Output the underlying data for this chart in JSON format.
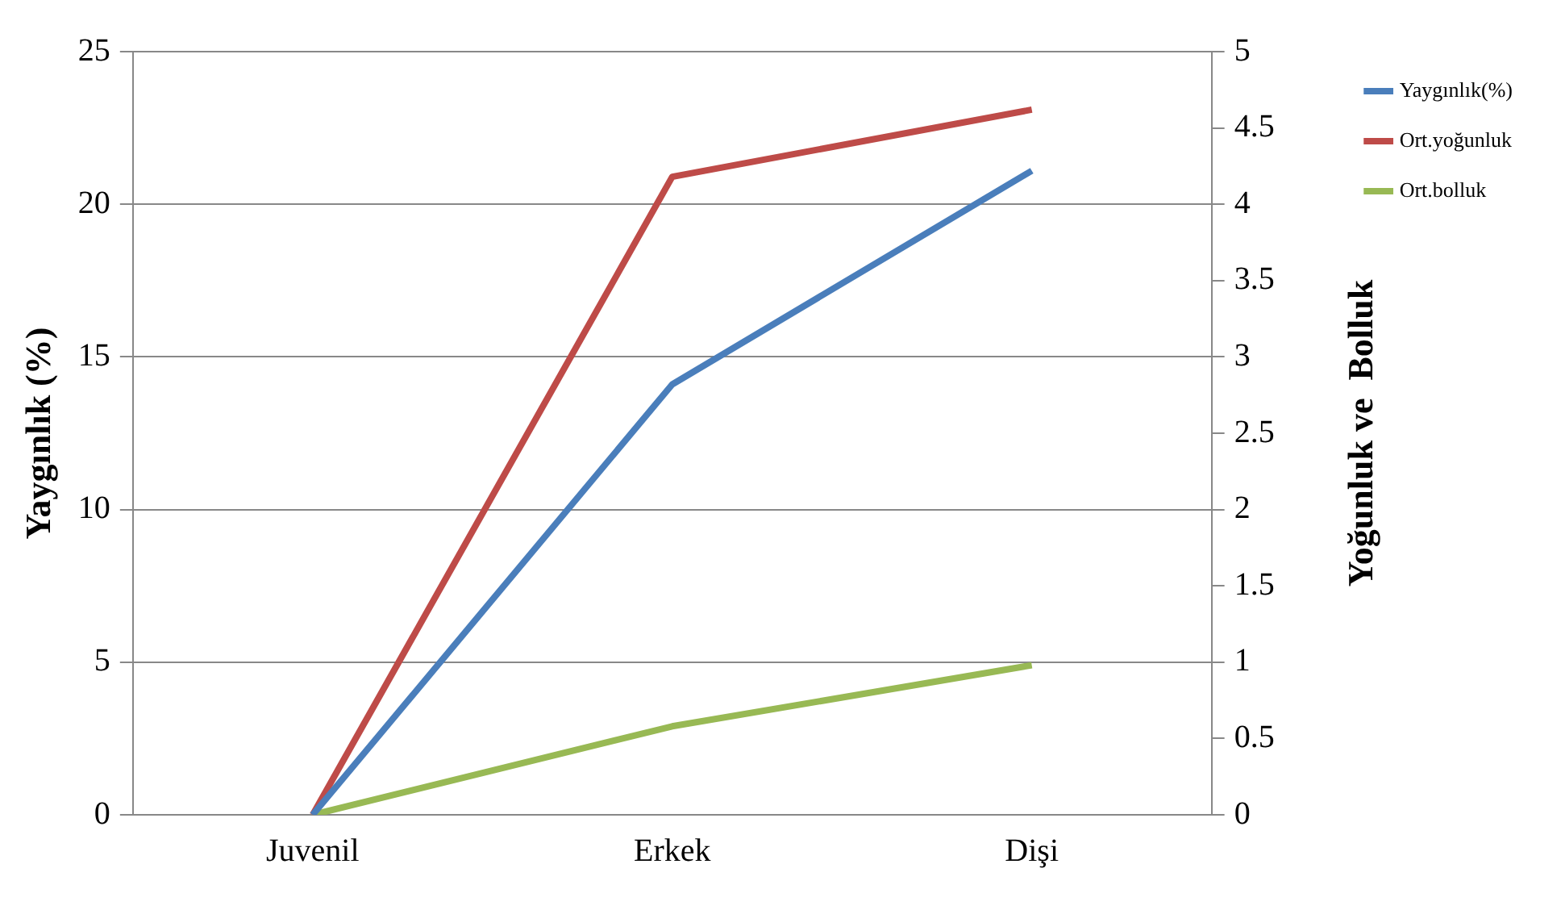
{
  "chart_data": {
    "type": "line",
    "xlabel": null,
    "ylabel": "Yaygınlık (%)",
    "y2label": "Yoğunluk ve  Bolluk",
    "categories": [
      "Juvenil",
      "Erkek",
      "Dişi"
    ],
    "series": [
      {
        "name": "Yaygınlık(%)",
        "color": "#4a7ebb",
        "values": [
          0,
          14.1,
          21.1
        ]
      },
      {
        "name": "Ort.yoğunluk",
        "color": "#be4b48",
        "values": [
          0,
          4.18,
          4.62
        ],
        "axis": "y2"
      },
      {
        "name": "Ort.bolluk",
        "color": "#98b954",
        "values": [
          0,
          0.58,
          0.98
        ],
        "axis": "y2"
      }
    ],
    "ylim": [
      0,
      25
    ],
    "yticks": [
      0,
      5,
      10,
      15,
      20,
      25
    ],
    "y2lim": [
      0,
      5
    ],
    "y2ticks": [
      0,
      0.5,
      1,
      1.5,
      2,
      2.5,
      3,
      3.5,
      4,
      4.5,
      5
    ],
    "grid": "y",
    "legend": "right",
    "marker": "none",
    "line_style": "solid"
  }
}
